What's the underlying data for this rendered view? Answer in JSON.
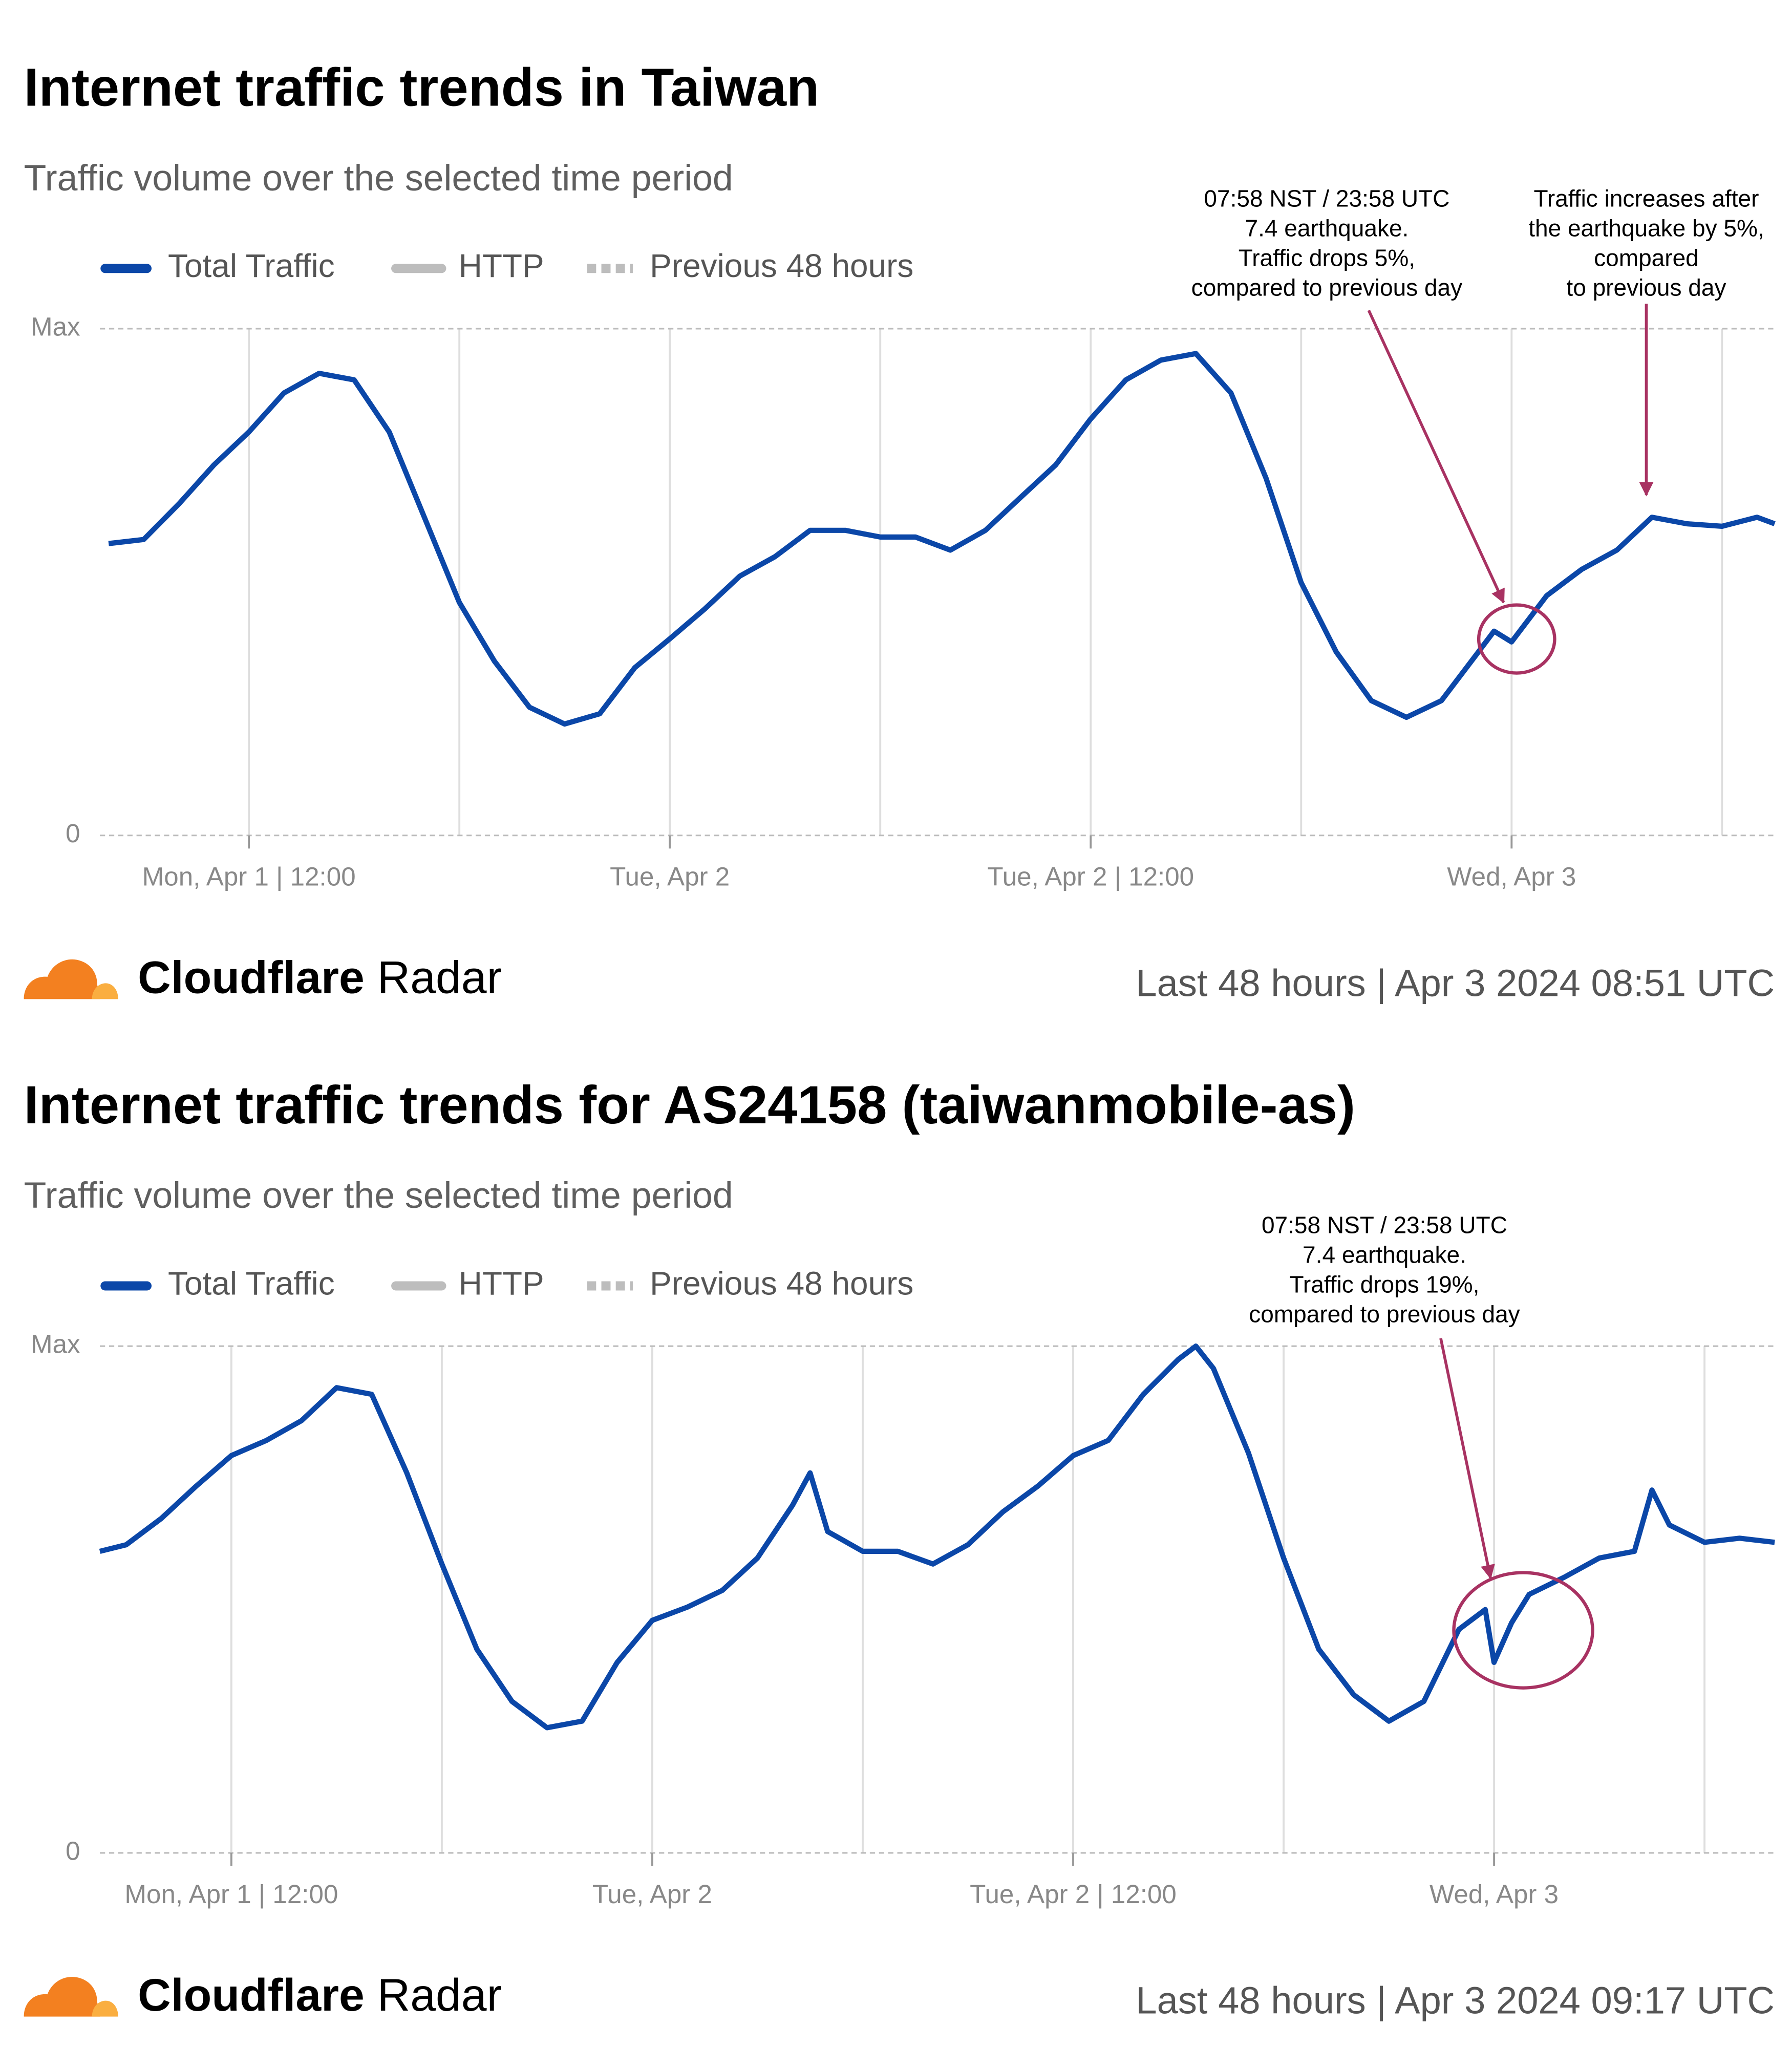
{
  "chart_data": [
    {
      "type": "line",
      "title": "Internet traffic trends in Taiwan",
      "subtitle": "Traffic volume over the selected time period",
      "x": [
        "Apr 1 08:00",
        "Apr 1 09:00",
        "Apr 1 10:00",
        "Apr 1 11:00",
        "Apr 1 12:00",
        "Apr 1 13:00",
        "Apr 1 14:00",
        "Apr 1 15:00",
        "Apr 1 16:00",
        "Apr 1 17:00",
        "Apr 1 18:00",
        "Apr 1 19:00",
        "Apr 1 20:00",
        "Apr 1 21:00",
        "Apr 1 22:00",
        "Apr 1 23:00",
        "Apr 2 00:00",
        "Apr 2 01:00",
        "Apr 2 02:00",
        "Apr 2 03:00",
        "Apr 2 04:00",
        "Apr 2 05:00",
        "Apr 2 06:00",
        "Apr 2 07:00",
        "Apr 2 08:00",
        "Apr 2 09:00",
        "Apr 2 10:00",
        "Apr 2 11:00",
        "Apr 2 12:00",
        "Apr 2 13:00",
        "Apr 2 14:00",
        "Apr 2 15:00",
        "Apr 2 16:00",
        "Apr 2 17:00",
        "Apr 2 18:00",
        "Apr 2 19:00",
        "Apr 2 20:00",
        "Apr 2 21:00",
        "Apr 2 22:00",
        "Apr 2 23:00",
        "Apr 2 23:30",
        "Apr 3 00:00",
        "Apr 3 01:00",
        "Apr 3 02:00",
        "Apr 3 03:00",
        "Apr 3 04:00",
        "Apr 3 05:00",
        "Apr 3 06:00",
        "Apr 3 07:00",
        "Apr 3 07:30"
      ],
      "series": [
        {
          "name": "Total Traffic",
          "color": "#0b47a8",
          "values": [
            57.6,
            58.4,
            65.4,
            73.1,
            79.6,
            87.3,
            91.2,
            89.9,
            79.6,
            62.8,
            46.0,
            34.4,
            25.3,
            22.0,
            24.0,
            33.1,
            38.8,
            44.7,
            51.2,
            55.0,
            60.2,
            60.2,
            58.9,
            58.9,
            56.3,
            60.2,
            66.7,
            73.1,
            82.2,
            89.9,
            93.8,
            95.1,
            87.3,
            70.5,
            49.9,
            36.2,
            26.6,
            23.3,
            26.6,
            35.7,
            40.3,
            38.2,
            47.3,
            52.5,
            56.3,
            62.8,
            61.5,
            61.0,
            62.8,
            61.5
          ]
        }
      ],
      "legend_extra": [
        {
          "name": "HTTP",
          "color": "#bdbdbd"
        },
        {
          "name": "Previous 48 hours",
          "color": "#bdbdbd",
          "dashed": true
        }
      ],
      "xlim": [
        "Apr 1 07:45",
        "Apr 3 07:30"
      ],
      "xticks": [
        {
          "value": "Apr 1 12:00",
          "label": "Mon, Apr 1 | 12:00"
        },
        {
          "value": "Apr 2 00:00",
          "label": "Tue, Apr 2"
        },
        {
          "value": "Apr 2 12:00",
          "label": "Tue, Apr 2 | 12:00"
        },
        {
          "value": "Apr 3 00:00",
          "label": "Wed, Apr 3"
        }
      ],
      "xgrid": [
        "Apr 1 12:00",
        "Apr 1 18:00",
        "Apr 2 00:00",
        "Apr 2 06:00",
        "Apr 2 12:00",
        "Apr 2 18:00",
        "Apr 3 00:00",
        "Apr 3 06:00"
      ],
      "ylim": [
        0,
        100
      ],
      "yticks": [
        0,
        {
          "value": 100,
          "label": "Max"
        }
      ],
      "annotations": [
        [
          "07:58 NST / 23:58 UTC",
          "7.4 earthquake.",
          "Traffic drops 5%,",
          "compared to previous day"
        ],
        [
          "Traffic increases after",
          "the earthquake by 5%,",
          "compared",
          "to previous day"
        ]
      ],
      "brand": [
        "Cloudflare",
        "Radar"
      ],
      "footer": "Last 48 hours | Apr 3 2024 08:51 UTC"
    },
    {
      "type": "line",
      "title": "Internet traffic trends for AS24158 (taiwanmobile-as)",
      "subtitle": "Traffic volume over the selected time period",
      "x": [
        "Apr 1 08:15",
        "Apr 1 09:00",
        "Apr 1 10:00",
        "Apr 1 11:00",
        "Apr 1 12:00",
        "Apr 1 13:00",
        "Apr 1 14:00",
        "Apr 1 15:00",
        "Apr 1 16:00",
        "Apr 1 17:00",
        "Apr 1 18:00",
        "Apr 1 19:00",
        "Apr 1 20:00",
        "Apr 1 21:00",
        "Apr 1 22:00",
        "Apr 1 23:00",
        "Apr 2 00:00",
        "Apr 2 01:00",
        "Apr 2 02:00",
        "Apr 2 03:00",
        "Apr 2 04:00",
        "Apr 2 04:30",
        "Apr 2 05:00",
        "Apr 2 06:00",
        "Apr 2 07:00",
        "Apr 2 08:00",
        "Apr 2 09:00",
        "Apr 2 10:00",
        "Apr 2 11:00",
        "Apr 2 12:00",
        "Apr 2 13:00",
        "Apr 2 14:00",
        "Apr 2 15:00",
        "Apr 2 15:30",
        "Apr 2 16:00",
        "Apr 2 17:00",
        "Apr 2 18:00",
        "Apr 2 19:00",
        "Apr 2 20:00",
        "Apr 2 21:00",
        "Apr 2 22:00",
        "Apr 2 23:00",
        "Apr 2 23:45",
        "Apr 3 00:00",
        "Apr 3 00:30",
        "Apr 3 01:00",
        "Apr 3 02:00",
        "Apr 3 03:00",
        "Apr 3 04:00",
        "Apr 3 04:30",
        "Apr 3 05:00",
        "Apr 3 06:00",
        "Apr 3 07:00",
        "Apr 3 08:00"
      ],
      "series": [
        {
          "name": "Total Traffic",
          "color": "#0b47a8",
          "values": [
            59.5,
            60.8,
            66.0,
            72.4,
            78.4,
            81.4,
            85.3,
            91.8,
            90.5,
            75.0,
            57.0,
            40.2,
            29.9,
            24.7,
            26.0,
            37.6,
            45.9,
            48.5,
            51.8,
            58.2,
            68.6,
            75.0,
            63.4,
            59.5,
            59.5,
            57.0,
            60.8,
            67.3,
            72.4,
            78.4,
            81.4,
            90.5,
            97.4,
            100,
            95.6,
            78.9,
            58.2,
            40.2,
            31.2,
            26.0,
            29.9,
            44.1,
            48.0,
            37.6,
            45.4,
            51.0,
            54.4,
            58.2,
            59.5,
            71.6,
            64.7,
            61.3,
            62.1,
            61.3
          ]
        }
      ],
      "legend_extra": [
        {
          "name": "HTTP",
          "color": "#bdbdbd"
        },
        {
          "name": "Previous 48 hours",
          "color": "#bdbdbd",
          "dashed": true
        }
      ],
      "xlim": [
        "Apr 1 08:15",
        "Apr 3 08:00"
      ],
      "xticks": [
        {
          "value": "Apr 1 12:00",
          "label": "Mon, Apr 1 | 12:00"
        },
        {
          "value": "Apr 2 00:00",
          "label": "Tue, Apr 2"
        },
        {
          "value": "Apr 2 12:00",
          "label": "Tue, Apr 2 | 12:00"
        },
        {
          "value": "Apr 3 00:00",
          "label": "Wed, Apr 3"
        }
      ],
      "xgrid": [
        "Apr 1 12:00",
        "Apr 1 18:00",
        "Apr 2 00:00",
        "Apr 2 06:00",
        "Apr 2 12:00",
        "Apr 2 18:00",
        "Apr 3 00:00",
        "Apr 3 06:00"
      ],
      "ylim": [
        0,
        100
      ],
      "yticks": [
        0,
        {
          "value": 100,
          "label": "Max"
        }
      ],
      "annotations": [
        [
          "07:58 NST / 23:58 UTC",
          "7.4 earthquake.",
          "Traffic drops 19%,",
          "compared to previous day"
        ]
      ],
      "brand": [
        "Cloudflare",
        "Radar"
      ],
      "footer": "Last 48 hours | Apr 3 2024 09:17 UTC"
    }
  ]
}
